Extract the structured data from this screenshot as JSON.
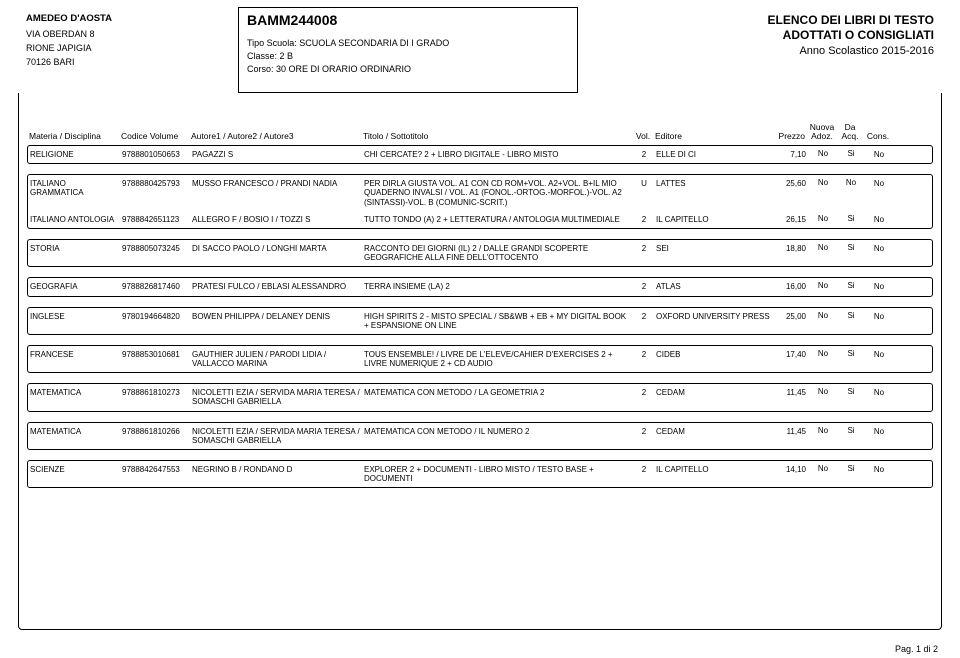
{
  "school": {
    "name": "AMEDEO D'AOSTA",
    "address1": "VIA OBERDAN 8",
    "address2": "RIONE JAPIGIA",
    "postal_city": "70126  BARI"
  },
  "center": {
    "code": "BAMM244008",
    "tipo_label": "Tipo Scuola:",
    "tipo_value": "SCUOLA SECONDARIA DI I GRADO",
    "classe_label": "Classe:",
    "classe_value": "2 B",
    "corso_label": "Corso:",
    "corso_value": "30 ORE DI ORARIO ORDINARIO"
  },
  "right": {
    "line1": "ELENCO DEI LIBRI DI TESTO",
    "line2": "ADOTTATI O CONSIGLIATI",
    "anno": "Anno Scolastico 2015-2016"
  },
  "headers": {
    "materia": "Materia / Disciplina",
    "codice": "Codice Volume",
    "autore": "Autore1 / Autore2 / Autore3",
    "titolo": "Titolo / Sottotitolo",
    "vol": "Vol.",
    "editore": "Editore",
    "prezzo": "Prezzo",
    "nuova1": "Nuova",
    "nuova2": "Adoz.",
    "da1": "Da",
    "da2": "Acq.",
    "cons": "Cons."
  },
  "rows": [
    {
      "materia": "RELIGIONE",
      "codice": "9788801050653",
      "autore": "PAGAZZI S",
      "titolo": "CHI CERCATE? 2 + LIBRO DIGITALE - LIBRO MISTO",
      "vol": "2",
      "editore": "ELLE DI CI",
      "prezzo": "7,10",
      "na": "No",
      "da": "Si",
      "co": "No"
    },
    {
      "materia": "ITALIANO GRAMMATICA",
      "codice": "9788880425793",
      "autore": "MUSSO FRANCESCO / PRANDI NADIA",
      "titolo": "PER DIRLA GIUSTA VOL. A1 CON CD ROM+VOL. A2+VOL. B+IL MIO QUADERNO INVALSI / VOL. A1 (FONOL.-ORTOG.-MORFOL.)-VOL. A2 (SINTASSI)-VOL. B (COMUNIC-SCRIT.)",
      "vol": "U",
      "editore": "LATTES",
      "prezzo": "25,60",
      "na": "No",
      "da": "No",
      "co": "No"
    },
    {
      "materia": "ITALIANO ANTOLOGIA",
      "codice": "9788842651123",
      "autore": "ALLEGRO F / BOSIO I / TOZZI S",
      "titolo": "TUTTO TONDO (A) 2 + LETTERATURA / ANTOLOGIA MULTIMEDIALE",
      "vol": "2",
      "editore": "IL CAPITELLO",
      "prezzo": "26,15",
      "na": "No",
      "da": "Si",
      "co": "No"
    },
    {
      "materia": "STORIA",
      "codice": "9788805073245",
      "autore": "DI SACCO PAOLO / LONGHI MARTA",
      "titolo": "RACCONTO DEI GIORNI (IL) 2 / DALLE GRANDI SCOPERTE GEOGRAFICHE ALLA FINE DELL'OTTOCENTO",
      "vol": "2",
      "editore": "SEI",
      "prezzo": "18,80",
      "na": "No",
      "da": "Si",
      "co": "No"
    },
    {
      "materia": "GEOGRAFIA",
      "codice": "9788826817460",
      "autore": "PRATESI FULCO / EBLASI ALESSANDRO",
      "titolo": "TERRA INSIEME (LA) 2",
      "vol": "2",
      "editore": "ATLAS",
      "prezzo": "16,00",
      "na": "No",
      "da": "Si",
      "co": "No"
    },
    {
      "materia": "INGLESE",
      "codice": "9780194664820",
      "autore": "BOWEN PHILIPPA / DELANEY DENIS",
      "titolo": "HIGH SPIRITS 2 - MISTO SPECIAL / SB&WB + EB + MY DIGITAL BOOK + ESPANSIONE ON LINE",
      "vol": "2",
      "editore": "OXFORD UNIVERSITY PRESS",
      "prezzo": "25,00",
      "na": "No",
      "da": "Si",
      "co": "No"
    },
    {
      "materia": "FRANCESE",
      "codice": "9788853010681",
      "autore": "GAUTHIER JULIEN / PARODI LIDIA / VALLACCO MARINA",
      "titolo": "TOUS ENSEMBLE! / LIVRE DE L'ELEVE/CAHIER D'EXERCISES 2 + LIVRE NUMERIQUE 2 + CD AUDIO",
      "vol": "2",
      "editore": "CIDEB",
      "prezzo": "17,40",
      "na": "No",
      "da": "Si",
      "co": "No"
    },
    {
      "materia": "MATEMATICA",
      "codice": "9788861810273",
      "autore": "NICOLETTI EZIA / SERVIDA MARIA TERESA / SOMASCHI GABRIELLA",
      "titolo": "MATEMATICA CON METODO / LA GEOMETRIA 2",
      "vol": "2",
      "editore": "CEDAM",
      "prezzo": "11,45",
      "na": "No",
      "da": "Si",
      "co": "No"
    },
    {
      "materia": "MATEMATICA",
      "codice": "9788861810266",
      "autore": "NICOLETTI EZIA / SERVIDA MARIA TERESA / SOMASCHI GABRIELLA",
      "titolo": "MATEMATICA CON METODO / IL NUMERO 2",
      "vol": "2",
      "editore": "CEDAM",
      "prezzo": "11,45",
      "na": "No",
      "da": "Si",
      "co": "No"
    },
    {
      "materia": "SCIENZE",
      "codice": "9788842647553",
      "autore": "NEGRINO B / RONDANO D",
      "titolo": "EXPLORER 2 + DOCUMENTI - LIBRO MISTO / TESTO BASE + DOCUMENTI",
      "vol": "2",
      "editore": "IL CAPITELLO",
      "prezzo": "14,10",
      "na": "No",
      "da": "Si",
      "co": "No"
    }
  ],
  "pager": "Pag. 1 di 2"
}
